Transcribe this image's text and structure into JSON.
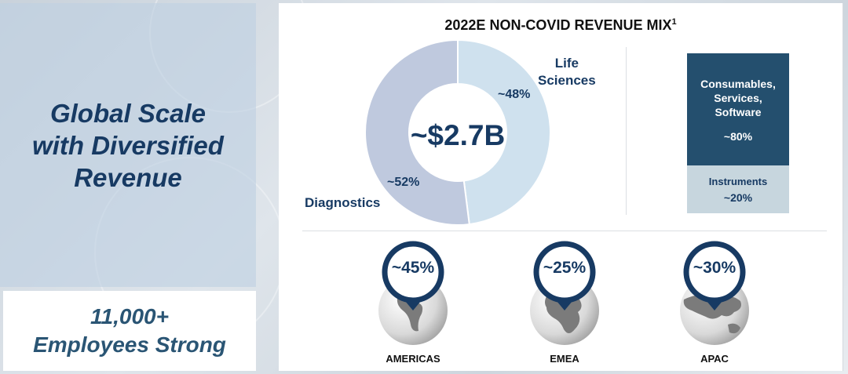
{
  "left": {
    "title_lines": [
      "Global Scale",
      "with Diversified",
      "Revenue"
    ],
    "employees_line1": "11,000+",
    "employees_line2": "Employees Strong"
  },
  "colors": {
    "navy": "#173a63",
    "dark_teal": "#244f6e",
    "light_bar": "#c7d6de",
    "donut_diagnostics": "#bfc9de",
    "donut_life_sciences": "#cfe1ee"
  },
  "chart_data": [
    {
      "type": "pie",
      "title": "2022E NON-COVID REVENUE MIX",
      "title_superscript": "1",
      "center_label": "~$2.7B",
      "slices": [
        {
          "name": "Life Sciences",
          "name_lines": [
            "Life",
            "Sciences"
          ],
          "value": 48,
          "label": "~48%"
        },
        {
          "name": "Diagnostics",
          "name_lines": [
            "Diagnostics"
          ],
          "value": 52,
          "label": "~52%"
        }
      ]
    },
    {
      "type": "bar",
      "stacked": true,
      "segments": [
        {
          "name_lines": [
            "Consumables,",
            "Services,",
            "Software"
          ],
          "value": 80,
          "label": "~80%"
        },
        {
          "name_lines": [
            "Instruments"
          ],
          "value": 20,
          "label": "~20%"
        }
      ]
    },
    {
      "type": "table",
      "regions": [
        {
          "name": "AMERICAS",
          "value": 45,
          "label": "~45%",
          "icon": "globe-americas-icon"
        },
        {
          "name": "EMEA",
          "value": 25,
          "label": "~25%",
          "icon": "globe-emea-icon"
        },
        {
          "name": "APAC",
          "value": 30,
          "label": "~30%",
          "icon": "globe-apac-icon"
        }
      ]
    }
  ]
}
